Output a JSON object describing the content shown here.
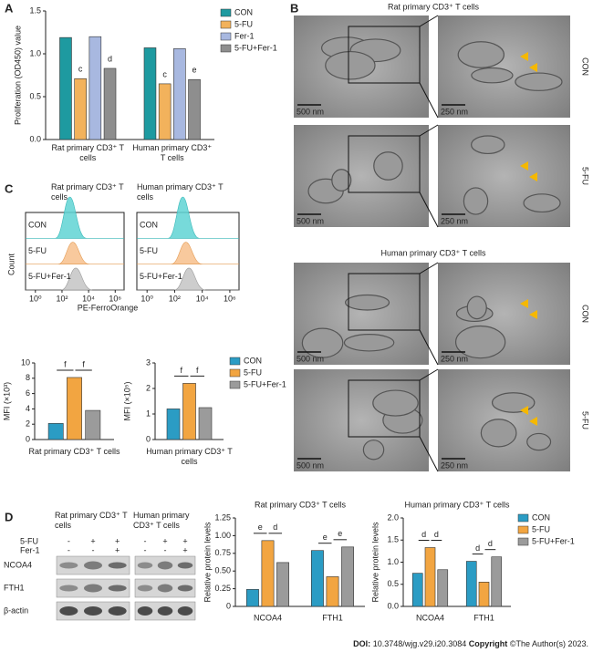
{
  "panel_labels": [
    "A",
    "B",
    "C",
    "D"
  ],
  "chart_data": [
    {
      "type": "bar",
      "ylabel": "Proliferation (OD450) value",
      "categories": [
        "Rat primary CD3⁺ T cells",
        "Human primary CD3⁺ T cells"
      ],
      "series": [
        {
          "name": "CON",
          "color": "#1e9aa0",
          "values": [
            1.19,
            1.07
          ]
        },
        {
          "name": "5-FU",
          "color": "#f2b25c",
          "values": [
            0.71,
            0.65
          ],
          "annotations": [
            "c",
            "c"
          ]
        },
        {
          "name": "Fer-1",
          "color": "#a8b8e0",
          "values": [
            1.2,
            1.06
          ]
        },
        {
          "name": "5-FU+Fer-1",
          "color": "#8e8e8e",
          "values": [
            0.83,
            0.7
          ],
          "annotations": [
            "d",
            "e"
          ]
        }
      ],
      "ylim": [
        0,
        1.5
      ],
      "yticks": [
        {
          "value": 0,
          "label": "0.0"
        },
        0.5,
        {
          "value": 1,
          "label": "1.0"
        },
        1.5
      ],
      "legend": "right"
    },
    {
      "type": "bar",
      "ylabel": "MFI (×10³)",
      "xlabel": "Rat primary CD3⁺ T cells",
      "categories": [
        null
      ],
      "series": [
        {
          "color": "#2b9cc4",
          "values": [
            2.1
          ]
        },
        {
          "color": "#f2a541",
          "values": [
            8.1
          ]
        },
        {
          "color": "#9b9b9b",
          "values": [
            3.8
          ]
        }
      ],
      "ylim": [
        0,
        10
      ],
      "yticks": [
        0,
        2,
        4,
        6,
        8,
        10
      ],
      "brackets": [
        {
          "category": 0,
          "from": 0,
          "to": 1,
          "label": "f"
        },
        {
          "category": 0,
          "from": 1,
          "to": 2,
          "label": "f"
        }
      ]
    },
    {
      "type": "bar",
      "ylabel": "MFI (×10⁵)",
      "xlabel": "Human primary CD3⁺ T cells",
      "categories": [
        null
      ],
      "series": [
        {
          "name": "CON",
          "color": "#2b9cc4",
          "values": [
            1.2
          ]
        },
        {
          "name": "5-FU",
          "color": "#f2a541",
          "values": [
            2.2
          ]
        },
        {
          "name": "5-FU+Fer-1",
          "color": "#9b9b9b",
          "values": [
            1.25
          ]
        }
      ],
      "ylim": [
        0,
        3
      ],
      "yticks": [
        0,
        1,
        2,
        3
      ],
      "legend": "right",
      "brackets": [
        {
          "category": 0,
          "from": 0,
          "to": 1,
          "label": "f"
        },
        {
          "category": 0,
          "from": 1,
          "to": 2,
          "label": "f"
        }
      ]
    },
    {
      "type": "bar",
      "title": "Rat primary CD3⁺ T cells",
      "ylabel": "Relative protein levels",
      "categories": [
        "NCOA4",
        "FTH1"
      ],
      "series": [
        {
          "color": "#2b9cc4",
          "values": [
            0.24,
            0.79
          ]
        },
        {
          "color": "#f2a541",
          "values": [
            0.93,
            0.42
          ]
        },
        {
          "color": "#9b9b9b",
          "values": [
            0.62,
            0.84
          ]
        }
      ],
      "ylim": [
        0,
        1.25
      ],
      "yticks": [
        0,
        0.25,
        {
          "value": 0.5,
          "label": "0.50"
        },
        0.75,
        {
          "value": 1,
          "label": "1.00"
        },
        1.25
      ],
      "brackets": [
        {
          "category": 0,
          "from": 0,
          "to": 1,
          "label": "e"
        },
        {
          "category": 0,
          "from": 1,
          "to": 2,
          "label": "d"
        },
        {
          "category": 1,
          "from": 0,
          "to": 1,
          "label": "e"
        },
        {
          "category": 1,
          "from": 1,
          "to": 2,
          "label": "e"
        }
      ]
    },
    {
      "type": "bar",
      "title": "Human primary CD3⁺ T cells",
      "ylabel": "Relative protein levels",
      "categories": [
        "NCOA4",
        "FTH1"
      ],
      "series": [
        {
          "name": "CON",
          "color": "#2b9cc4",
          "values": [
            0.75,
            1.02
          ]
        },
        {
          "name": "5-FU",
          "color": "#f2a541",
          "values": [
            1.33,
            0.55
          ]
        },
        {
          "name": "5-FU+Fer-1",
          "color": "#9b9b9b",
          "values": [
            0.83,
            1.12
          ]
        }
      ],
      "ylim": [
        0,
        2
      ],
      "yticks": [
        {
          "value": 0,
          "label": "0.0"
        },
        0.5,
        {
          "value": 1,
          "label": "1.0"
        },
        1.5,
        {
          "value": 2,
          "label": "2.0"
        }
      ],
      "legend": "right",
      "brackets": [
        {
          "category": 0,
          "from": 0,
          "to": 1,
          "label": "d"
        },
        {
          "category": 0,
          "from": 1,
          "to": 2,
          "label": "d"
        },
        {
          "category": 1,
          "from": 0,
          "to": 1,
          "label": "d"
        },
        {
          "category": 1,
          "from": 1,
          "to": 2,
          "label": "d"
        }
      ]
    }
  ],
  "em": {
    "rat_title": "Rat primary CD3⁺ T cells",
    "human_title": "Human primary CD3⁺ T cells",
    "rows": [
      "CON",
      "5-FU",
      "CON",
      "5-FU"
    ],
    "scale_overview": "500 nm",
    "scale_zoom": "250 nm"
  },
  "flow": {
    "titles": [
      "Rat primary CD3⁺ T cells",
      "Human primary CD3⁺ T cells"
    ],
    "rows": [
      "CON",
      "5-FU",
      "5-FU+Fer-1"
    ],
    "ylabel": "Count",
    "xlabel": "PE-FerroOrange",
    "xticks": [
      "10⁰",
      "10²",
      "10⁴",
      "10⁶"
    ]
  },
  "blot": {
    "titles": [
      "Rat primary CD3⁺ T cells",
      "Human primary CD3⁺ T cells"
    ],
    "treatments": [
      {
        "name": "5-FU",
        "signs": [
          "-",
          "+",
          "+"
        ]
      },
      {
        "name": "Fer-1",
        "signs": [
          "-",
          "-",
          "+"
        ]
      }
    ],
    "proteins": [
      "NCOA4",
      "FTH1",
      "β-actin"
    ]
  },
  "footer": {
    "doi_label": "DOI:",
    "doi": "10.3748/wjg.v29.i20.3084",
    "copyright_label": "Copyright",
    "copyright": "©The Author(s) 2023."
  }
}
